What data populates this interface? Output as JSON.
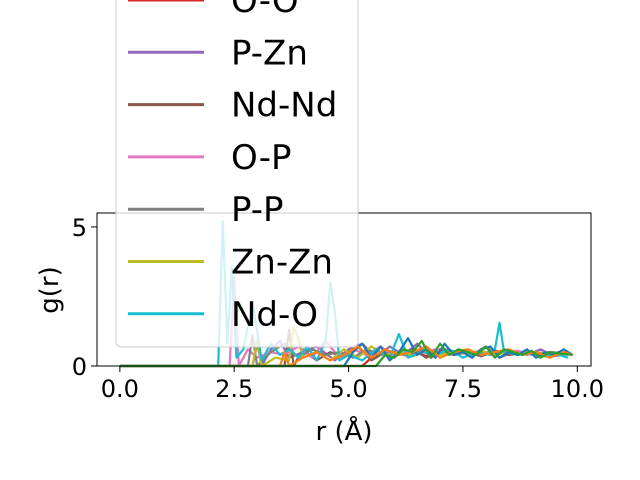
{
  "chart_data": {
    "type": "line",
    "title": "",
    "xlabel": "r (Å)",
    "ylabel": "g(r)",
    "xlim": [
      -0.5,
      10.3
    ],
    "ylim": [
      0,
      5.5
    ],
    "xticks": [
      "0.0",
      "2.5",
      "5.0",
      "7.5",
      "10.0"
    ],
    "xtick_values": [
      0,
      2.5,
      5,
      7.5,
      10
    ],
    "yticks": [
      "0",
      "5"
    ],
    "ytick_values": [
      0,
      5
    ],
    "grid": false,
    "legend_placement": "upper-left",
    "series": [
      {
        "name": "O-O",
        "color": "#d62728",
        "x": [
          0,
          2.1,
          2.3,
          2.5,
          2.7,
          2.8,
          3.0,
          3.2,
          3.4,
          3.6,
          3.8,
          4.0,
          4.6,
          4.7,
          4.8,
          5.0,
          5.2,
          5.3,
          5.5,
          5.8,
          6.1,
          6.4,
          6.7,
          7.0,
          7.3,
          7.6,
          7.9,
          8.2,
          8.5,
          8.8,
          9.1,
          9.4,
          9.8
        ],
        "y": [
          0,
          0,
          0,
          0,
          0,
          0,
          0,
          0,
          0,
          0,
          0,
          0,
          0,
          0,
          0,
          0,
          0,
          0,
          0.3,
          0.45,
          0.4,
          0.55,
          0.35,
          0.6,
          0.4,
          0.5,
          0.45,
          0.55,
          0.4,
          0.5,
          0.45,
          0.5,
          0.45
        ]
      },
      {
        "name": "P-Zn",
        "color": "#9467bd",
        "x": [
          0,
          2.9,
          3.0,
          3.1,
          3.3,
          3.5,
          3.7,
          4.0,
          4.3,
          4.7,
          5.0,
          5.3,
          5.6,
          5.9,
          6.2,
          6.5,
          6.8,
          7.1,
          7.4,
          7.7,
          8.0,
          8.3,
          8.6,
          8.9,
          9.2,
          9.5,
          9.8
        ],
        "y": [
          0,
          0,
          0.8,
          0,
          0.6,
          0.9,
          0.3,
          0.5,
          0.7,
          0.2,
          0.6,
          0.8,
          0.3,
          0.7,
          0.4,
          0.8,
          0.3,
          0.6,
          0.5,
          0.4,
          0.7,
          0.3,
          0.5,
          0.4,
          0.6,
          0.35,
          0.45
        ]
      },
      {
        "name": "Nd-Nd",
        "color": "#8c564b",
        "x": [
          0,
          3.6,
          3.7,
          3.8,
          4.0,
          4.3,
          4.6,
          4.9,
          5.2,
          5.5,
          5.8,
          6.1,
          6.4,
          6.7,
          7.0,
          7.3,
          7.6,
          7.9,
          8.2,
          8.5,
          8.8,
          9.1,
          9.4,
          9.8
        ],
        "y": [
          0,
          0,
          1.3,
          0,
          0.6,
          0.2,
          0.5,
          0.3,
          0.7,
          0.2,
          0.5,
          0.4,
          0.6,
          0.3,
          0.55,
          0.4,
          0.5,
          0.35,
          0.55,
          0.4,
          0.45,
          0.5,
          0.4,
          0.45
        ]
      },
      {
        "name": "O-P",
        "color": "#e377c2",
        "x": [
          0,
          1.5,
          1.55,
          1.6,
          2.4,
          2.5,
          2.6,
          2.8,
          3.0,
          3.3,
          3.6,
          3.9,
          4.2,
          4.5,
          4.8,
          5.1,
          5.4,
          5.7,
          6.0,
          6.3,
          6.6,
          6.9,
          7.2,
          7.5,
          7.8,
          8.1,
          8.4,
          8.7,
          9.0,
          9.3,
          9.6,
          9.8
        ],
        "y": [
          0,
          0,
          0,
          0,
          0,
          3.2,
          0,
          0.6,
          0.3,
          0.5,
          0.4,
          0.7,
          0.3,
          0.9,
          0.3,
          0.6,
          0.4,
          0.7,
          0.35,
          0.55,
          0.5,
          0.6,
          0.4,
          0.55,
          0.45,
          0.5,
          0.45,
          0.55,
          0.4,
          0.5,
          0.45,
          0.4
        ]
      },
      {
        "name": "P-P",
        "color": "#7f7f7f",
        "x": [
          0,
          2.8,
          2.9,
          3.0,
          3.3,
          3.6,
          3.9,
          4.2,
          4.5,
          4.8,
          5.1,
          5.4,
          5.7,
          6.0,
          6.3,
          6.6,
          6.9,
          7.2,
          7.5,
          7.8,
          8.1,
          8.4,
          8.7,
          9.0,
          9.3,
          9.6,
          9.8
        ],
        "y": [
          0,
          0,
          1.1,
          0,
          0.5,
          0.8,
          0.3,
          0.6,
          0.4,
          0.5,
          0.3,
          0.6,
          0.4,
          0.5,
          0.35,
          0.6,
          0.4,
          0.5,
          0.45,
          0.5,
          0.4,
          0.55,
          0.45,
          0.5,
          0.4,
          0.5,
          0.45
        ]
      },
      {
        "name": "Zn-Zn",
        "color": "#bcbd22",
        "x": [
          0,
          2.9,
          3.0,
          3.1,
          3.4,
          3.7,
          3.8,
          3.9,
          4.0,
          4.3,
          4.6,
          4.9,
          5.2,
          5.5,
          5.8,
          6.1,
          6.4,
          6.7,
          7.0,
          7.3,
          7.6,
          7.9,
          8.2,
          8.5,
          8.8,
          9.1,
          9.4,
          9.8
        ],
        "y": [
          0,
          0,
          0.9,
          0,
          0.3,
          0.2,
          1.4,
          1.0,
          0.3,
          0.5,
          0.2,
          0.6,
          0.3,
          0.7,
          0.4,
          0.5,
          0.35,
          0.55,
          0.4,
          0.5,
          0.45,
          0.55,
          0.4,
          0.5,
          0.45,
          0.5,
          0.4,
          0.45
        ]
      },
      {
        "name": "Nd-O",
        "color": "#17becf",
        "x": [
          0,
          2.15,
          2.25,
          2.35,
          2.45,
          2.55,
          2.7,
          2.9,
          3.1,
          3.3,
          3.5,
          3.7,
          3.9,
          4.1,
          4.3,
          4.5,
          4.6,
          4.7,
          4.8,
          5.0,
          5.3,
          5.6,
          5.9,
          6.1,
          6.3,
          6.6,
          6.9,
          7.2,
          7.5,
          7.8,
          8.0,
          8.2,
          8.3,
          8.4,
          8.7,
          9.0,
          9.3,
          9.6,
          9.8
        ],
        "y": [
          0,
          0,
          5.2,
          0.8,
          3.6,
          0.3,
          0.6,
          2.3,
          0.2,
          0.8,
          0.4,
          0.6,
          0.3,
          0.7,
          0.2,
          0.9,
          3.0,
          1.9,
          0.2,
          0.4,
          0.2,
          0.6,
          0.3,
          1.15,
          0.3,
          0.5,
          0.4,
          0.6,
          0.3,
          0.5,
          0.4,
          0.6,
          1.55,
          0.5,
          0.4,
          0.45,
          0.35,
          0.4,
          0.3
        ]
      },
      {
        "name": "",
        "color": "#1f77b4",
        "x": [
          0,
          4.9,
          5.1,
          5.3,
          5.5,
          5.7,
          5.9,
          6.1,
          6.3,
          6.5,
          6.7,
          6.9,
          7.1,
          7.3,
          7.5,
          7.7,
          7.9,
          8.1,
          8.3,
          8.5,
          8.7,
          8.9,
          9.1,
          9.3,
          9.5,
          9.7,
          9.9
        ],
        "y": [
          0,
          0,
          0.5,
          0.8,
          0.3,
          0.7,
          0.2,
          0.5,
          1.0,
          0.4,
          0.6,
          0.3,
          0.8,
          0.4,
          0.5,
          0.3,
          0.6,
          0.7,
          0.3,
          0.5,
          0.4,
          0.6,
          0.3,
          0.5,
          0.4,
          0.6,
          0.4
        ]
      },
      {
        "name": "",
        "color": "#ff7f0e",
        "x": [
          0,
          3.5,
          3.6,
          3.7,
          4.0,
          4.3,
          4.6,
          4.9,
          5.2,
          5.5,
          5.8,
          6.1,
          6.4,
          6.7,
          7.0,
          7.3,
          7.6,
          7.9,
          8.2,
          8.5,
          8.8,
          9.1,
          9.4,
          9.7,
          9.9
        ],
        "y": [
          0,
          0,
          0.5,
          0,
          0.3,
          0.5,
          0.2,
          0.4,
          0.7,
          0.3,
          0.6,
          0.4,
          0.5,
          0.7,
          0.3,
          0.5,
          0.6,
          0.4,
          0.5,
          0.6,
          0.4,
          0.5,
          0.3,
          0.5,
          0.4
        ]
      },
      {
        "name": "",
        "color": "#2ca02c",
        "x": [
          0,
          5.6,
          5.8,
          6.0,
          6.2,
          6.4,
          6.6,
          6.8,
          7.0,
          7.2,
          7.4,
          7.6,
          7.8,
          8.0,
          8.2,
          8.4,
          8.6,
          8.8,
          9.0,
          9.2,
          9.4,
          9.6,
          9.9
        ],
        "y": [
          0,
          0,
          0.4,
          0.3,
          0.6,
          0.5,
          0.9,
          0.3,
          0.8,
          0.4,
          0.6,
          0.5,
          0.4,
          0.7,
          0.3,
          0.6,
          0.5,
          0.4,
          0.55,
          0.3,
          0.5,
          0.45,
          0.4
        ]
      }
    ],
    "legend_entries": [
      {
        "label": "O-O",
        "color": "#d62728"
      },
      {
        "label": "P-Zn",
        "color": "#9467bd"
      },
      {
        "label": "Nd-Nd",
        "color": "#8c564b"
      },
      {
        "label": "O-P",
        "color": "#e377c2"
      },
      {
        "label": "P-P",
        "color": "#7f7f7f"
      },
      {
        "label": "Zn-Zn",
        "color": "#bcbd22"
      },
      {
        "label": "Nd-O",
        "color": "#17becf"
      }
    ]
  }
}
